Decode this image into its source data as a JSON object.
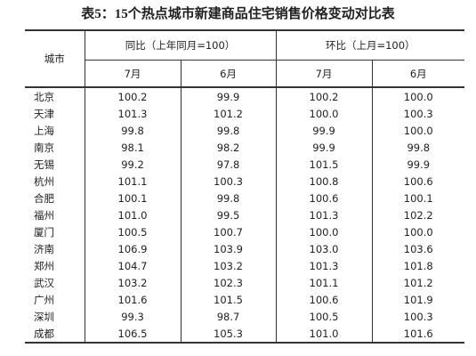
{
  "title": "表5：15个热点城市新建商品住宅销售价格变动对比表",
  "table": {
    "city_header": "城市",
    "groups": [
      "同比（上年同月=100）",
      "环比（上月=100）"
    ],
    "months": [
      "7月",
      "6月",
      "7月",
      "6月"
    ],
    "rows": [
      [
        "北京",
        "100.2",
        "99.9",
        "100.2",
        "100.0"
      ],
      [
        "天津",
        "101.3",
        "101.2",
        "100.0",
        "100.3"
      ],
      [
        "上海",
        "99.8",
        "99.8",
        "99.9",
        "100.0"
      ],
      [
        "南京",
        "98.1",
        "98.2",
        "99.9",
        "99.8"
      ],
      [
        "无锡",
        "99.2",
        "97.8",
        "101.5",
        "99.9"
      ],
      [
        "杭州",
        "101.1",
        "100.3",
        "100.8",
        "100.6"
      ],
      [
        "合肥",
        "100.1",
        "99.8",
        "100.6",
        "100.1"
      ],
      [
        "福州",
        "101.0",
        "99.5",
        "101.3",
        "102.2"
      ],
      [
        "厦门",
        "100.5",
        "100.7",
        "100.0",
        "100.0"
      ],
      [
        "济南",
        "106.9",
        "103.9",
        "103.0",
        "103.6"
      ],
      [
        "郑州",
        "104.7",
        "103.2",
        "101.3",
        "101.8"
      ],
      [
        "武汉",
        "103.2",
        "102.3",
        "101.1",
        "101.2"
      ],
      [
        "广州",
        "101.6",
        "101.5",
        "100.6",
        "101.9"
      ],
      [
        "深圳",
        "99.3",
        "98.7",
        "100.5",
        "100.3"
      ],
      [
        "成都",
        "106.5",
        "105.3",
        "101.0",
        "101.6"
      ]
    ]
  }
}
